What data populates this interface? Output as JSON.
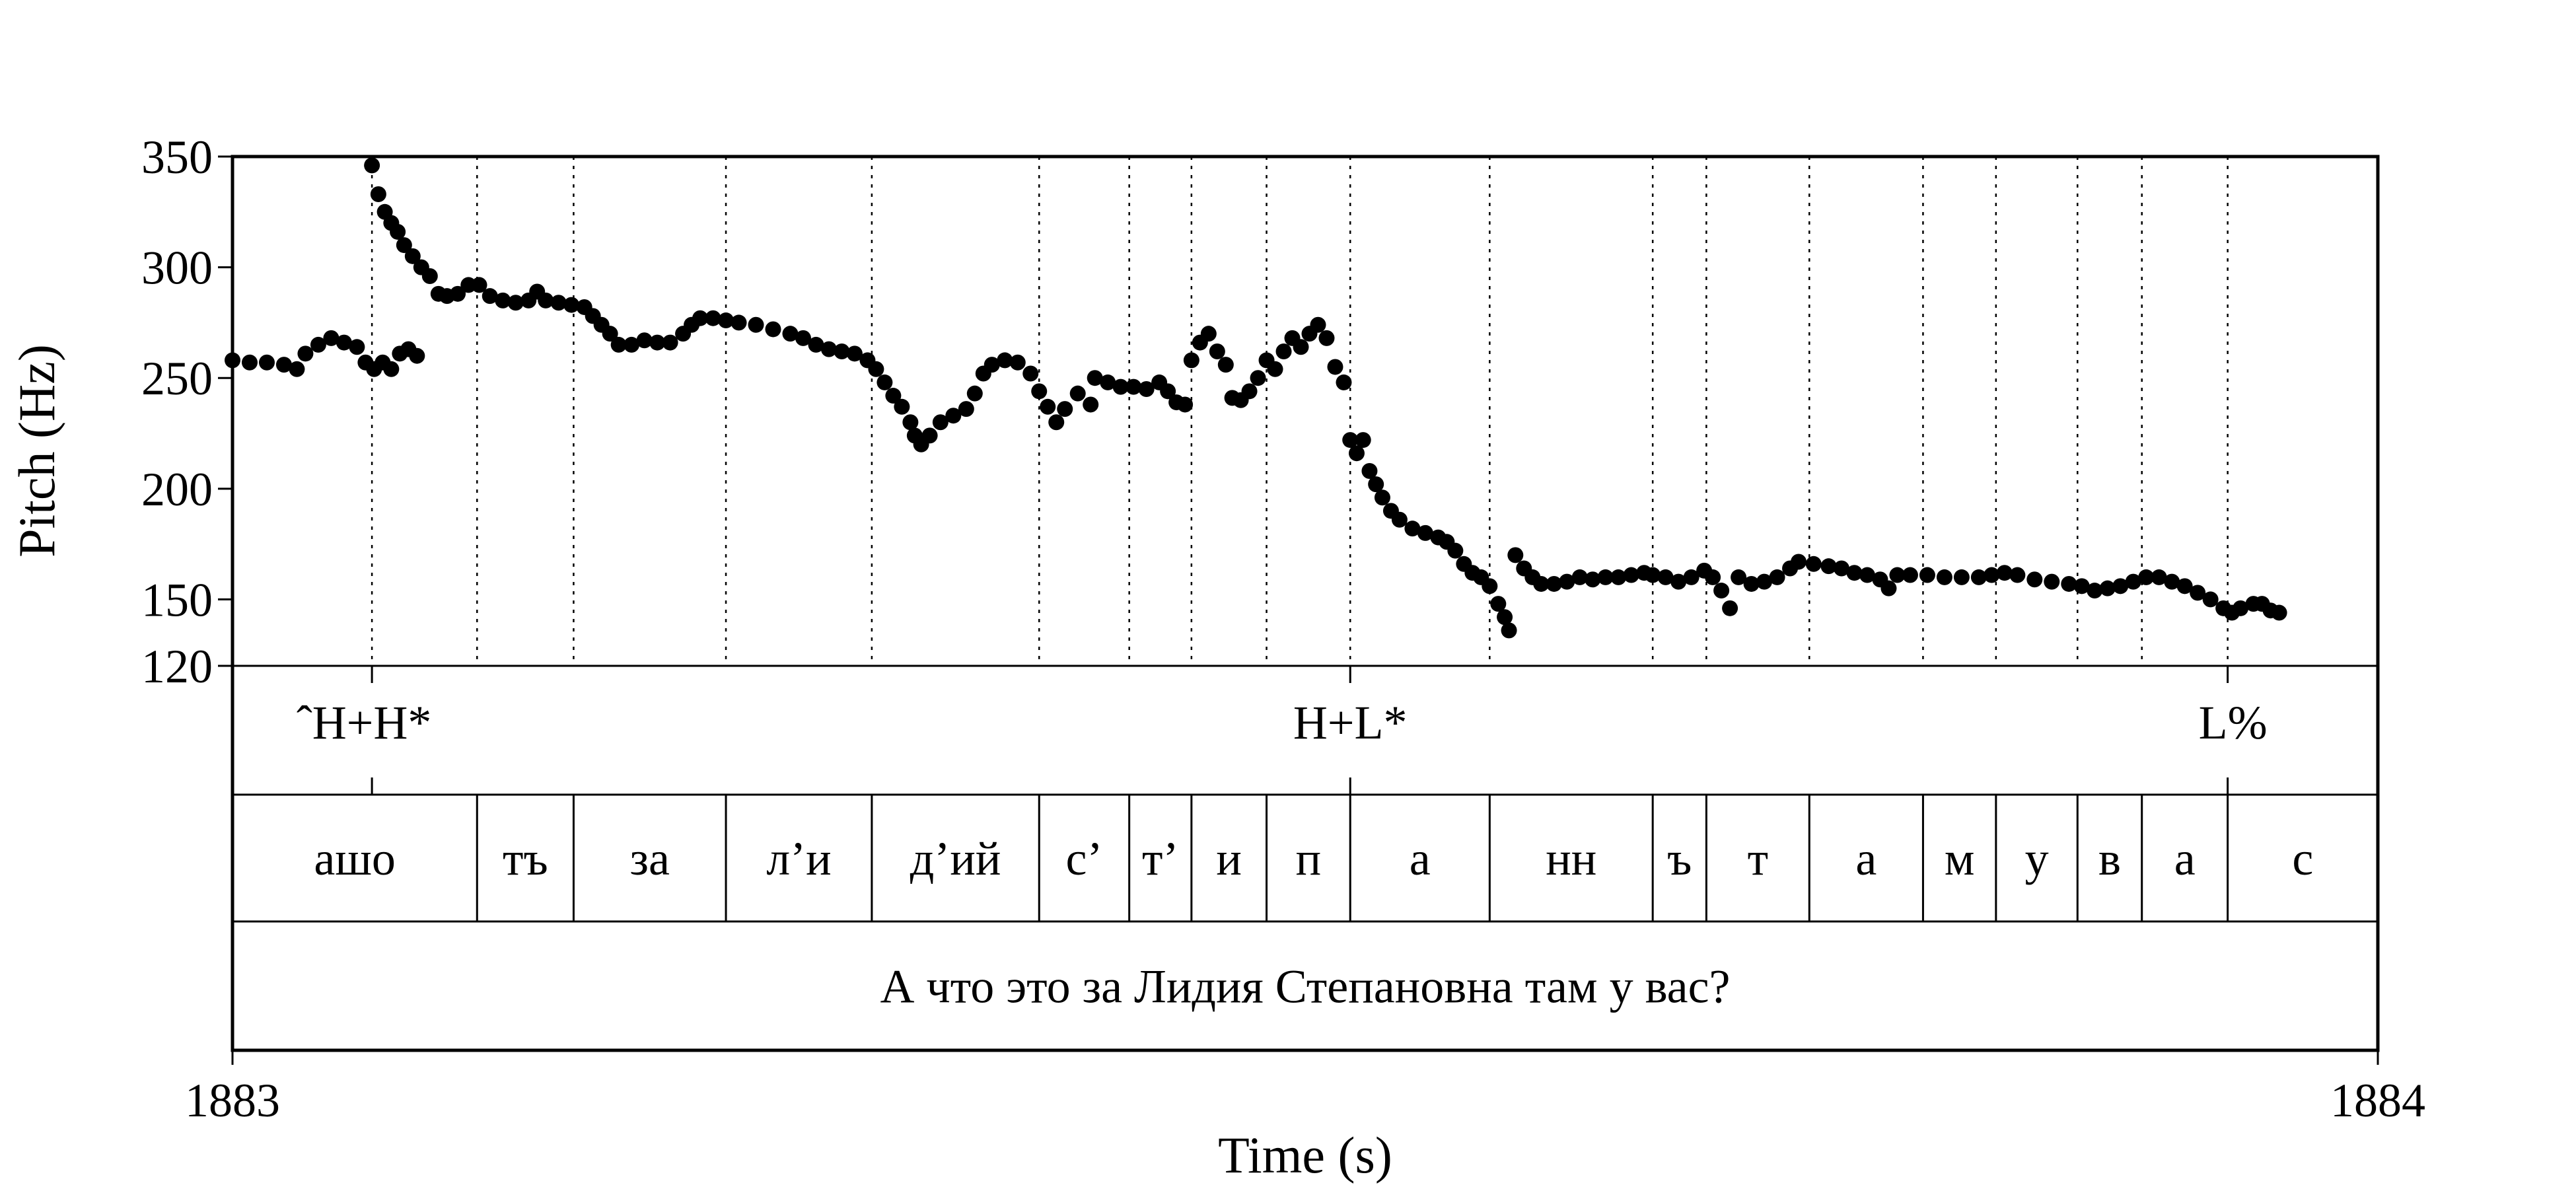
{
  "chart_data": {
    "type": "scatter",
    "xlabel": "Time (s)",
    "ylabel": "Pitch (Hz)",
    "xlim": [
      1883,
      1884
    ],
    "ylim": [
      120,
      350
    ],
    "x_ticks": [
      "1883",
      "1884"
    ],
    "y_ticks": [
      120,
      150,
      200,
      250,
      300,
      350
    ],
    "tones": [
      {
        "label": "ˆH+H*",
        "time": 1883.065
      },
      {
        "label": "H+L*",
        "time": 1883.521
      },
      {
        "label": "L%",
        "time": 1883.93
      }
    ],
    "segments": [
      {
        "label": "ашо",
        "start": 1883.0,
        "end": 1883.114
      },
      {
        "label": "тъ",
        "start": 1883.114,
        "end": 1883.159
      },
      {
        "label": "за",
        "start": 1883.159,
        "end": 1883.23
      },
      {
        "label": "л’и",
        "start": 1883.23,
        "end": 1883.298
      },
      {
        "label": "д’ий",
        "start": 1883.298,
        "end": 1883.376
      },
      {
        "label": "с’",
        "start": 1883.376,
        "end": 1883.418
      },
      {
        "label": "т’",
        "start": 1883.418,
        "end": 1883.447
      },
      {
        "label": "и",
        "start": 1883.447,
        "end": 1883.482
      },
      {
        "label": "п",
        "start": 1883.482,
        "end": 1883.521
      },
      {
        "label": "а",
        "start": 1883.521,
        "end": 1883.586
      },
      {
        "label": "нн",
        "start": 1883.586,
        "end": 1883.662
      },
      {
        "label": "ъ",
        "start": 1883.662,
        "end": 1883.687
      },
      {
        "label": "т",
        "start": 1883.687,
        "end": 1883.735
      },
      {
        "label": "а",
        "start": 1883.735,
        "end": 1883.788
      },
      {
        "label": "м",
        "start": 1883.788,
        "end": 1883.822
      },
      {
        "label": "у",
        "start": 1883.822,
        "end": 1883.86
      },
      {
        "label": "в",
        "start": 1883.86,
        "end": 1883.89
      },
      {
        "label": "а",
        "start": 1883.89,
        "end": 1883.93
      },
      {
        "label": "с",
        "start": 1883.93,
        "end": 1884.0
      }
    ],
    "sentence": "А что это за Лидия Степановна там у вас?",
    "pitch_track": [
      [
        1883.0,
        258
      ],
      [
        1883.008,
        257
      ],
      [
        1883.016,
        257
      ],
      [
        1883.024,
        256
      ],
      [
        1883.03,
        254
      ],
      [
        1883.034,
        261
      ],
      [
        1883.04,
        265
      ],
      [
        1883.046,
        268
      ],
      [
        1883.052,
        266
      ],
      [
        1883.058,
        264
      ],
      [
        1883.062,
        257
      ],
      [
        1883.066,
        254
      ],
      [
        1883.07,
        257
      ],
      [
        1883.074,
        254
      ],
      [
        1883.078,
        261
      ],
      [
        1883.082,
        263
      ],
      [
        1883.086,
        260
      ],
      [
        1883.065,
        346
      ],
      [
        1883.068,
        333
      ],
      [
        1883.071,
        325
      ],
      [
        1883.074,
        320
      ],
      [
        1883.077,
        316
      ],
      [
        1883.08,
        310
      ],
      [
        1883.084,
        305
      ],
      [
        1883.088,
        300
      ],
      [
        1883.092,
        296
      ],
      [
        1883.096,
        288
      ],
      [
        1883.1,
        287
      ],
      [
        1883.105,
        288
      ],
      [
        1883.11,
        292
      ],
      [
        1883.115,
        292
      ],
      [
        1883.12,
        287
      ],
      [
        1883.126,
        285
      ],
      [
        1883.132,
        284
      ],
      [
        1883.138,
        285
      ],
      [
        1883.142,
        289
      ],
      [
        1883.146,
        285
      ],
      [
        1883.152,
        284
      ],
      [
        1883.158,
        283
      ],
      [
        1883.164,
        282
      ],
      [
        1883.168,
        278
      ],
      [
        1883.172,
        274
      ],
      [
        1883.176,
        270
      ],
      [
        1883.18,
        265
      ],
      [
        1883.186,
        265
      ],
      [
        1883.192,
        267
      ],
      [
        1883.198,
        266
      ],
      [
        1883.204,
        266
      ],
      [
        1883.21,
        270
      ],
      [
        1883.214,
        274
      ],
      [
        1883.218,
        277
      ],
      [
        1883.224,
        277
      ],
      [
        1883.23,
        276
      ],
      [
        1883.236,
        275
      ],
      [
        1883.244,
        274
      ],
      [
        1883.252,
        272
      ],
      [
        1883.26,
        270
      ],
      [
        1883.266,
        268
      ],
      [
        1883.272,
        265
      ],
      [
        1883.278,
        263
      ],
      [
        1883.284,
        262
      ],
      [
        1883.29,
        261
      ],
      [
        1883.296,
        258
      ],
      [
        1883.3,
        254
      ],
      [
        1883.304,
        248
      ],
      [
        1883.308,
        242
      ],
      [
        1883.312,
        237
      ],
      [
        1883.316,
        230
      ],
      [
        1883.318,
        224
      ],
      [
        1883.321,
        220
      ],
      [
        1883.325,
        224
      ],
      [
        1883.33,
        230
      ],
      [
        1883.336,
        233
      ],
      [
        1883.342,
        236
      ],
      [
        1883.346,
        243
      ],
      [
        1883.35,
        252
      ],
      [
        1883.354,
        256
      ],
      [
        1883.36,
        258
      ],
      [
        1883.366,
        257
      ],
      [
        1883.372,
        252
      ],
      [
        1883.376,
        244
      ],
      [
        1883.38,
        237
      ],
      [
        1883.384,
        230
      ],
      [
        1883.388,
        236
      ],
      [
        1883.394,
        243
      ],
      [
        1883.4,
        238
      ],
      [
        1883.402,
        250
      ],
      [
        1883.408,
        248
      ],
      [
        1883.414,
        246
      ],
      [
        1883.42,
        246
      ],
      [
        1883.426,
        245
      ],
      [
        1883.432,
        248
      ],
      [
        1883.436,
        244
      ],
      [
        1883.44,
        239
      ],
      [
        1883.444,
        238
      ],
      [
        1883.447,
        258
      ],
      [
        1883.451,
        266
      ],
      [
        1883.455,
        270
      ],
      [
        1883.459,
        262
      ],
      [
        1883.463,
        256
      ],
      [
        1883.466,
        241
      ],
      [
        1883.47,
        240
      ],
      [
        1883.474,
        244
      ],
      [
        1883.478,
        250
      ],
      [
        1883.482,
        258
      ],
      [
        1883.486,
        254
      ],
      [
        1883.49,
        262
      ],
      [
        1883.494,
        268
      ],
      [
        1883.498,
        264
      ],
      [
        1883.502,
        270
      ],
      [
        1883.506,
        274
      ],
      [
        1883.51,
        268
      ],
      [
        1883.514,
        255
      ],
      [
        1883.518,
        248
      ],
      [
        1883.521,
        222
      ],
      [
        1883.524,
        216
      ],
      [
        1883.527,
        222
      ],
      [
        1883.53,
        208
      ],
      [
        1883.533,
        202
      ],
      [
        1883.536,
        196
      ],
      [
        1883.54,
        190
      ],
      [
        1883.544,
        186
      ],
      [
        1883.55,
        182
      ],
      [
        1883.556,
        180
      ],
      [
        1883.562,
        178
      ],
      [
        1883.566,
        176
      ],
      [
        1883.57,
        172
      ],
      [
        1883.574,
        166
      ],
      [
        1883.578,
        162
      ],
      [
        1883.582,
        160
      ],
      [
        1883.586,
        156
      ],
      [
        1883.59,
        148
      ],
      [
        1883.593,
        142
      ],
      [
        1883.595,
        136
      ],
      [
        1883.598,
        170
      ],
      [
        1883.602,
        164
      ],
      [
        1883.606,
        160
      ],
      [
        1883.61,
        157
      ],
      [
        1883.616,
        157
      ],
      [
        1883.622,
        158
      ],
      [
        1883.628,
        160
      ],
      [
        1883.634,
        159
      ],
      [
        1883.64,
        160
      ],
      [
        1883.646,
        160
      ],
      [
        1883.652,
        161
      ],
      [
        1883.658,
        162
      ],
      [
        1883.662,
        161
      ],
      [
        1883.668,
        160
      ],
      [
        1883.674,
        158
      ],
      [
        1883.68,
        160
      ],
      [
        1883.686,
        163
      ],
      [
        1883.69,
        160
      ],
      [
        1883.694,
        154
      ],
      [
        1883.698,
        146
      ],
      [
        1883.702,
        160
      ],
      [
        1883.708,
        157
      ],
      [
        1883.714,
        158
      ],
      [
        1883.72,
        160
      ],
      [
        1883.726,
        164
      ],
      [
        1883.73,
        167
      ],
      [
        1883.737,
        166
      ],
      [
        1883.744,
        165
      ],
      [
        1883.75,
        164
      ],
      [
        1883.756,
        162
      ],
      [
        1883.762,
        161
      ],
      [
        1883.768,
        159
      ],
      [
        1883.772,
        155
      ],
      [
        1883.776,
        161
      ],
      [
        1883.782,
        161
      ],
      [
        1883.79,
        161
      ],
      [
        1883.798,
        160
      ],
      [
        1883.806,
        160
      ],
      [
        1883.814,
        160
      ],
      [
        1883.82,
        161
      ],
      [
        1883.826,
        162
      ],
      [
        1883.832,
        161
      ],
      [
        1883.84,
        159
      ],
      [
        1883.848,
        158
      ],
      [
        1883.856,
        157
      ],
      [
        1883.862,
        156
      ],
      [
        1883.868,
        154
      ],
      [
        1883.874,
        155
      ],
      [
        1883.88,
        156
      ],
      [
        1883.886,
        158
      ],
      [
        1883.892,
        160
      ],
      [
        1883.898,
        160
      ],
      [
        1883.904,
        158
      ],
      [
        1883.91,
        156
      ],
      [
        1883.916,
        153
      ],
      [
        1883.922,
        150
      ],
      [
        1883.928,
        146
      ],
      [
        1883.932,
        144
      ],
      [
        1883.936,
        146
      ],
      [
        1883.942,
        148
      ],
      [
        1883.946,
        148
      ],
      [
        1883.95,
        145
      ],
      [
        1883.954,
        144
      ]
    ]
  }
}
